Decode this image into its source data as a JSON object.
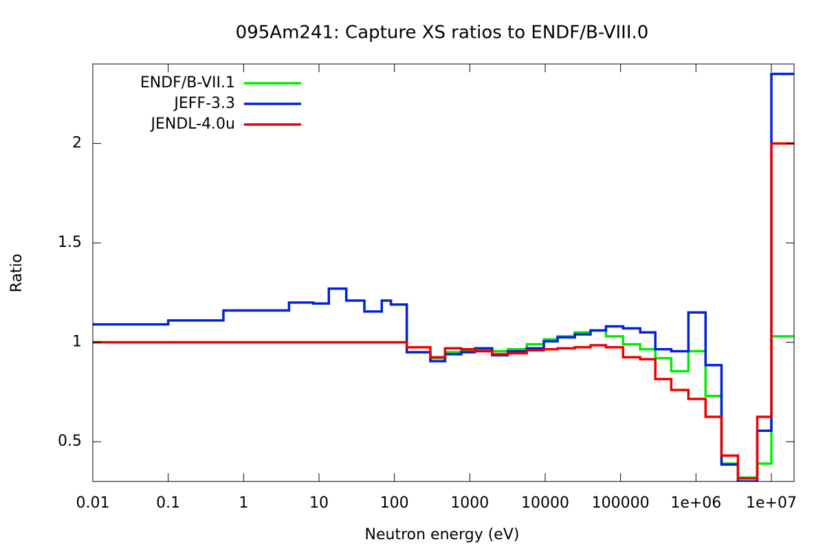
{
  "chart_data": {
    "type": "line",
    "style": "steps",
    "title": "095Am241: Capture XS ratios to ENDF/B-VIII.0",
    "x_label": "Neutron energy (eV)",
    "y_label": "Ratio",
    "x_log": true,
    "legend": "top-left",
    "grid": false,
    "x": [
      0.01,
      0.1,
      0.54,
      4,
      8.4,
      13.5,
      23,
      40,
      68,
      90,
      146,
      300,
      470,
      770,
      1170,
      1980,
      3200,
      5700,
      9600,
      14600,
      24700,
      40000,
      64000,
      108000,
      182000,
      289000,
      470000,
      794000,
      1340000,
      2180000,
      3600000,
      6500000,
      10000000,
      20000000
    ],
    "series": [
      {
        "name": "ENDF/B-VII.1",
        "color": "#00ee00",
        "values": [
          1.0,
          1.0,
          1.0,
          1.0,
          1.0,
          1.0,
          1.0,
          1.0,
          1.0,
          1.0,
          0.95,
          0.92,
          0.95,
          0.955,
          0.96,
          0.955,
          0.965,
          0.99,
          1.015,
          1.03,
          1.05,
          1.06,
          1.03,
          0.99,
          0.965,
          0.92,
          0.855,
          0.955,
          0.73,
          0.39,
          0.32,
          0.39,
          1.03,
          1.03
        ]
      },
      {
        "name": "JEFF-3.3",
        "color": "#0020dd",
        "values": [
          1.09,
          1.11,
          1.16,
          1.2,
          1.195,
          1.27,
          1.21,
          1.155,
          1.21,
          1.19,
          0.95,
          0.905,
          0.94,
          0.95,
          0.97,
          0.935,
          0.955,
          0.97,
          1.005,
          1.025,
          1.04,
          1.06,
          1.08,
          1.07,
          1.05,
          0.965,
          0.955,
          1.15,
          0.885,
          0.385,
          0.3,
          0.555,
          2.35,
          2.35
        ]
      },
      {
        "name": "JENDL-4.0u",
        "color": "#ee0000",
        "values": [
          1.0,
          1.0,
          1.0,
          1.0,
          1.0,
          1.0,
          1.0,
          1.0,
          1.0,
          1.0,
          0.975,
          0.925,
          0.97,
          0.965,
          0.955,
          0.94,
          0.945,
          0.96,
          0.965,
          0.97,
          0.975,
          0.985,
          0.975,
          0.925,
          0.915,
          0.815,
          0.76,
          0.715,
          0.625,
          0.43,
          0.315,
          0.625,
          2.0,
          2.0
        ]
      }
    ],
    "xlim": [
      0.01,
      20000000
    ],
    "ylim": [
      0.3,
      2.4
    ],
    "xticks": [
      0.01,
      0.1,
      1,
      10,
      100,
      1000,
      10000,
      100000,
      {
        "value": 1000000,
        "label": "1e+06"
      },
      {
        "value": 10000000,
        "label": "1e+07"
      }
    ],
    "yticks": [
      0.5,
      1,
      1.5,
      2
    ]
  }
}
